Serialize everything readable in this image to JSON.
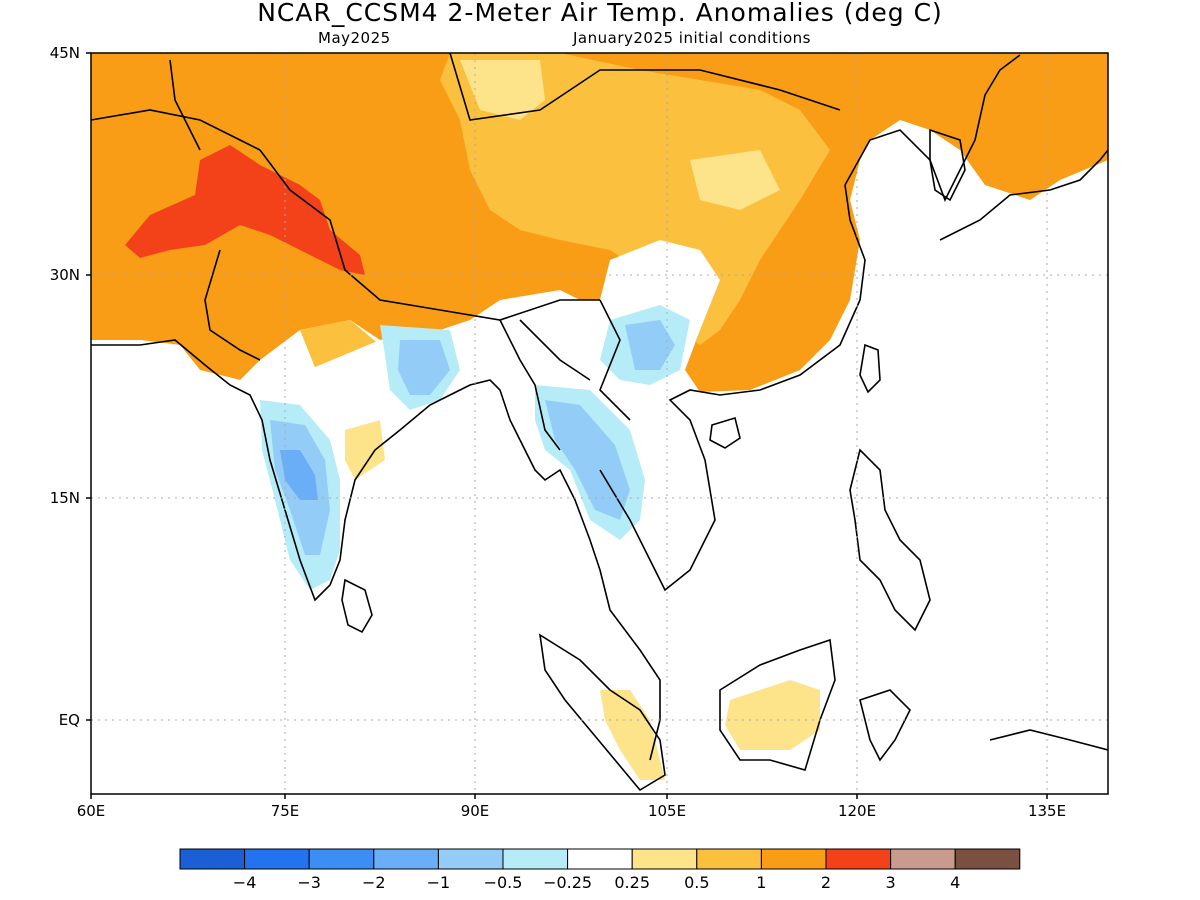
{
  "title": "NCAR_CCSM4 2-Meter Air Temp. Anomalies (deg C)",
  "subtitle_left": "May2025",
  "subtitle_right": "January2025 initial conditions",
  "lat_labels": [
    "45N",
    "30N",
    "15N",
    "EQ"
  ],
  "lon_labels": [
    "60E",
    "75E",
    "90E",
    "105E",
    "120E",
    "135E"
  ],
  "colorbar": {
    "labels": [
      "-4",
      "-3",
      "-2",
      "-1",
      "-0.5",
      "-0.25",
      "0.25",
      "0.5",
      "1",
      "2",
      "3",
      "4"
    ],
    "colors": [
      "#1a5fd6",
      "#2372f0",
      "#3c8ef5",
      "#6aaef7",
      "#94ccf8",
      "#b6ecf8",
      "#ffffff",
      "#fde48a",
      "#fbc03e",
      "#f99d17",
      "#f3421a",
      "#c99a8e",
      "#7a5040"
    ]
  }
}
